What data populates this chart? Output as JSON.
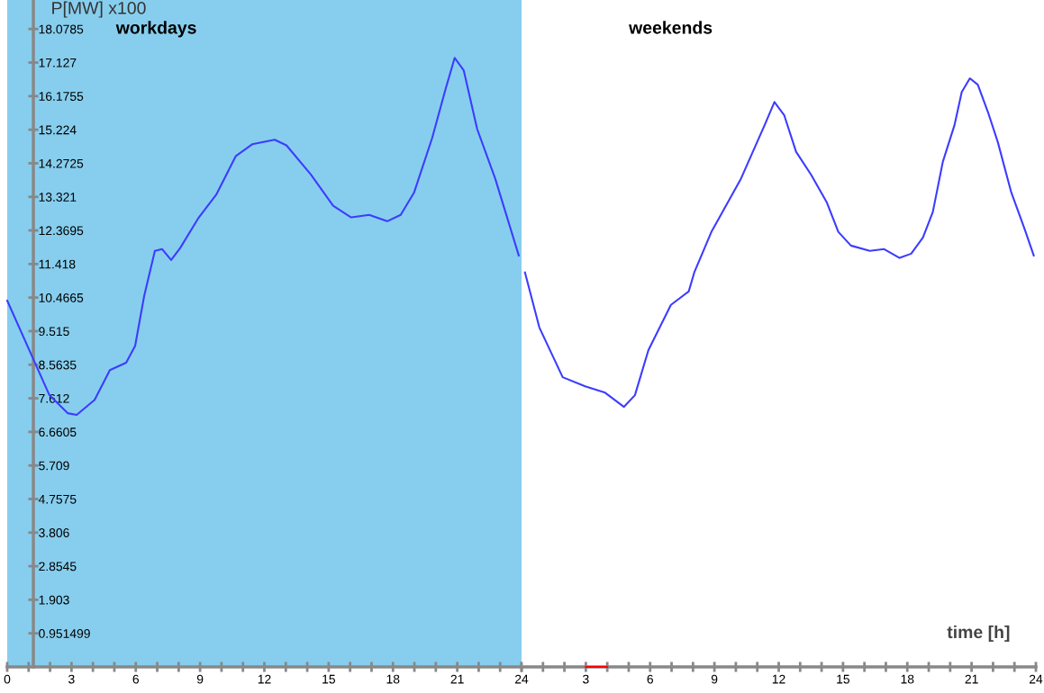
{
  "chart_data": [
    {
      "type": "line",
      "title": "workdays",
      "ylabel": "P[MW] x100",
      "x": [
        0,
        1.22,
        1.97,
        2.82,
        3.24,
        4.08,
        4.79,
        5.55,
        5.97,
        6.39,
        6.89,
        7.23,
        7.65,
        8.07,
        8.91,
        9.75,
        10.67,
        11.43,
        12.48,
        13.03,
        14.16,
        15.21,
        16.05,
        16.89,
        17.73,
        18.36,
        18.99,
        19.83,
        20.46,
        20.88,
        21.3,
        21.93,
        22.77,
        23.87
      ],
      "series": [
        {
          "color": "#3c3cff",
          "values": [
            10.38,
            8.72,
            7.7,
            7.19,
            7.14,
            7.57,
            8.41,
            8.62,
            9.1,
            10.51,
            11.79,
            11.84,
            11.53,
            11.87,
            12.71,
            13.38,
            14.48,
            14.81,
            14.94,
            14.78,
            13.96,
            13.07,
            12.74,
            12.81,
            12.63,
            12.81,
            13.45,
            14.99,
            16.39,
            17.26,
            16.91,
            15.24,
            13.84,
            11.66
          ]
        }
      ],
      "xlim": [
        0,
        24
      ],
      "ylim": [
        0,
        18.9
      ],
      "xticks": [
        0,
        {
          "value": 1,
          "label": null
        },
        {
          "value": 2,
          "label": null
        },
        3,
        {
          "value": 4,
          "label": null
        },
        {
          "value": 5,
          "label": null
        },
        6,
        {
          "value": 7,
          "label": null
        },
        {
          "value": 8,
          "label": null
        },
        9,
        {
          "value": 10,
          "label": null
        },
        {
          "value": 11,
          "label": null
        },
        12,
        {
          "value": 13,
          "label": null
        },
        {
          "value": 14,
          "label": null
        },
        15,
        {
          "value": 16,
          "label": null
        },
        {
          "value": 17,
          "label": null
        },
        18,
        {
          "value": 19,
          "label": null
        },
        {
          "value": 20,
          "label": null
        },
        21,
        {
          "value": 22,
          "label": null
        },
        {
          "value": 23,
          "label": null
        },
        24
      ],
      "yticks": [
        0.951499,
        1.903,
        2.8545,
        3.806,
        4.7575,
        5.709,
        6.6605,
        7.612,
        8.5635,
        9.515,
        10.4665,
        11.418,
        12.3695,
        13.321,
        14.2725,
        15.224,
        16.1755,
        17.127,
        18.0785
      ],
      "bands": [
        {
          "axis": "x",
          "from": 0,
          "to": 24,
          "color": "#87ceee"
        }
      ],
      "grid": false,
      "legend": false,
      "marker": "none",
      "line_style": "solid"
    },
    {
      "type": "line",
      "title": "weekends",
      "xlabel": "time [h]",
      "x": [
        0.16,
        0.83,
        1.92,
        2.97,
        3.9,
        4.78,
        5.29,
        5.92,
        6.97,
        7.8,
        8.06,
        8.86,
        10.24,
        11.34,
        11.8,
        12.26,
        12.81,
        13.52,
        14.24,
        14.78,
        15.37,
        16.25,
        16.92,
        17.64,
        18.18,
        18.73,
        19.19,
        19.66,
        20.2,
        20.54,
        20.92,
        21.29,
        21.76,
        22.22,
        22.85,
        23.48,
        23.9
      ],
      "series": [
        {
          "color": "#3c3cff",
          "values": [
            11.18,
            9.62,
            8.21,
            7.95,
            7.77,
            7.37,
            7.7,
            8.98,
            10.26,
            10.64,
            11.18,
            12.33,
            13.84,
            15.35,
            16.01,
            15.63,
            14.6,
            13.94,
            13.17,
            12.33,
            11.94,
            11.79,
            11.84,
            11.59,
            11.71,
            12.17,
            12.89,
            14.32,
            15.35,
            16.29,
            16.68,
            16.5,
            15.73,
            14.88,
            13.45,
            12.4,
            11.66
          ]
        },
        {
          "color": "#ff0000",
          "x": [
            3,
            4
          ],
          "values": [
            0,
            0
          ]
        }
      ],
      "xlim": [
        0,
        24
      ],
      "ylim": [
        0,
        18.9
      ],
      "tick_labels": "x",
      "xticks": [
        {
          "value": 0,
          "label": null
        },
        {
          "value": 1,
          "label": null
        },
        {
          "value": 2,
          "label": null
        },
        3,
        {
          "value": 4,
          "label": null
        },
        {
          "value": 5,
          "label": null
        },
        6,
        {
          "value": 7,
          "label": null
        },
        {
          "value": 8,
          "label": null
        },
        9,
        {
          "value": 10,
          "label": null
        },
        {
          "value": 11,
          "label": null
        },
        12,
        {
          "value": 13,
          "label": null
        },
        {
          "value": 14,
          "label": null
        },
        15,
        {
          "value": 16,
          "label": null
        },
        {
          "value": 17,
          "label": null
        },
        18,
        {
          "value": 19,
          "label": null
        },
        {
          "value": 20,
          "label": null
        },
        21,
        {
          "value": 22,
          "label": null
        },
        {
          "value": 23,
          "label": null
        },
        24
      ],
      "grid": false,
      "legend": false,
      "marker": "none",
      "line_style": "solid"
    }
  ]
}
